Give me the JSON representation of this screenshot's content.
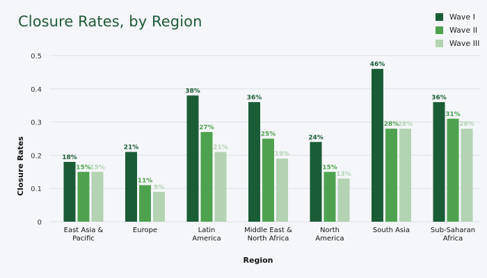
{
  "chart_data": {
    "type": "bar",
    "title": "Closure Rates, by Region",
    "xlabel": "Region",
    "ylabel": "Closure Rates",
    "ylim": [
      0,
      0.5
    ],
    "yticks": [
      "0",
      "0.1",
      "0.2",
      "0.3",
      "0.4",
      "0.5"
    ],
    "grid": true,
    "legend_position": "top-right",
    "categories": [
      [
        "East Asia &",
        "Pacific"
      ],
      [
        "Europe"
      ],
      [
        "Latin",
        "America"
      ],
      [
        "Middle East &",
        "North Africa"
      ],
      [
        "North",
        "America"
      ],
      [
        "South Asia"
      ],
      [
        "Sub-Saharan",
        "Africa"
      ]
    ],
    "series": [
      {
        "name": "Wave I",
        "color": "#1a5c36",
        "values": [
          0.18,
          0.21,
          0.38,
          0.36,
          0.24,
          0.46,
          0.36
        ],
        "labels": [
          "18%",
          "21%",
          "38%",
          "36%",
          "24%",
          "46%",
          "36%"
        ]
      },
      {
        "name": "Wave II",
        "color": "#4ea24f",
        "values": [
          0.15,
          0.11,
          0.27,
          0.25,
          0.15,
          0.28,
          0.31
        ],
        "labels": [
          "15%",
          "11%",
          "27%",
          "25%",
          "15%",
          "28%",
          "31%"
        ]
      },
      {
        "name": "Wave III",
        "color": "#b3d3b3",
        "values": [
          0.15,
          0.09,
          0.21,
          0.19,
          0.13,
          0.28,
          0.28
        ],
        "labels": [
          "15%",
          "9%",
          "21%",
          "19%",
          "13%",
          "28%",
          "28%"
        ]
      }
    ]
  }
}
